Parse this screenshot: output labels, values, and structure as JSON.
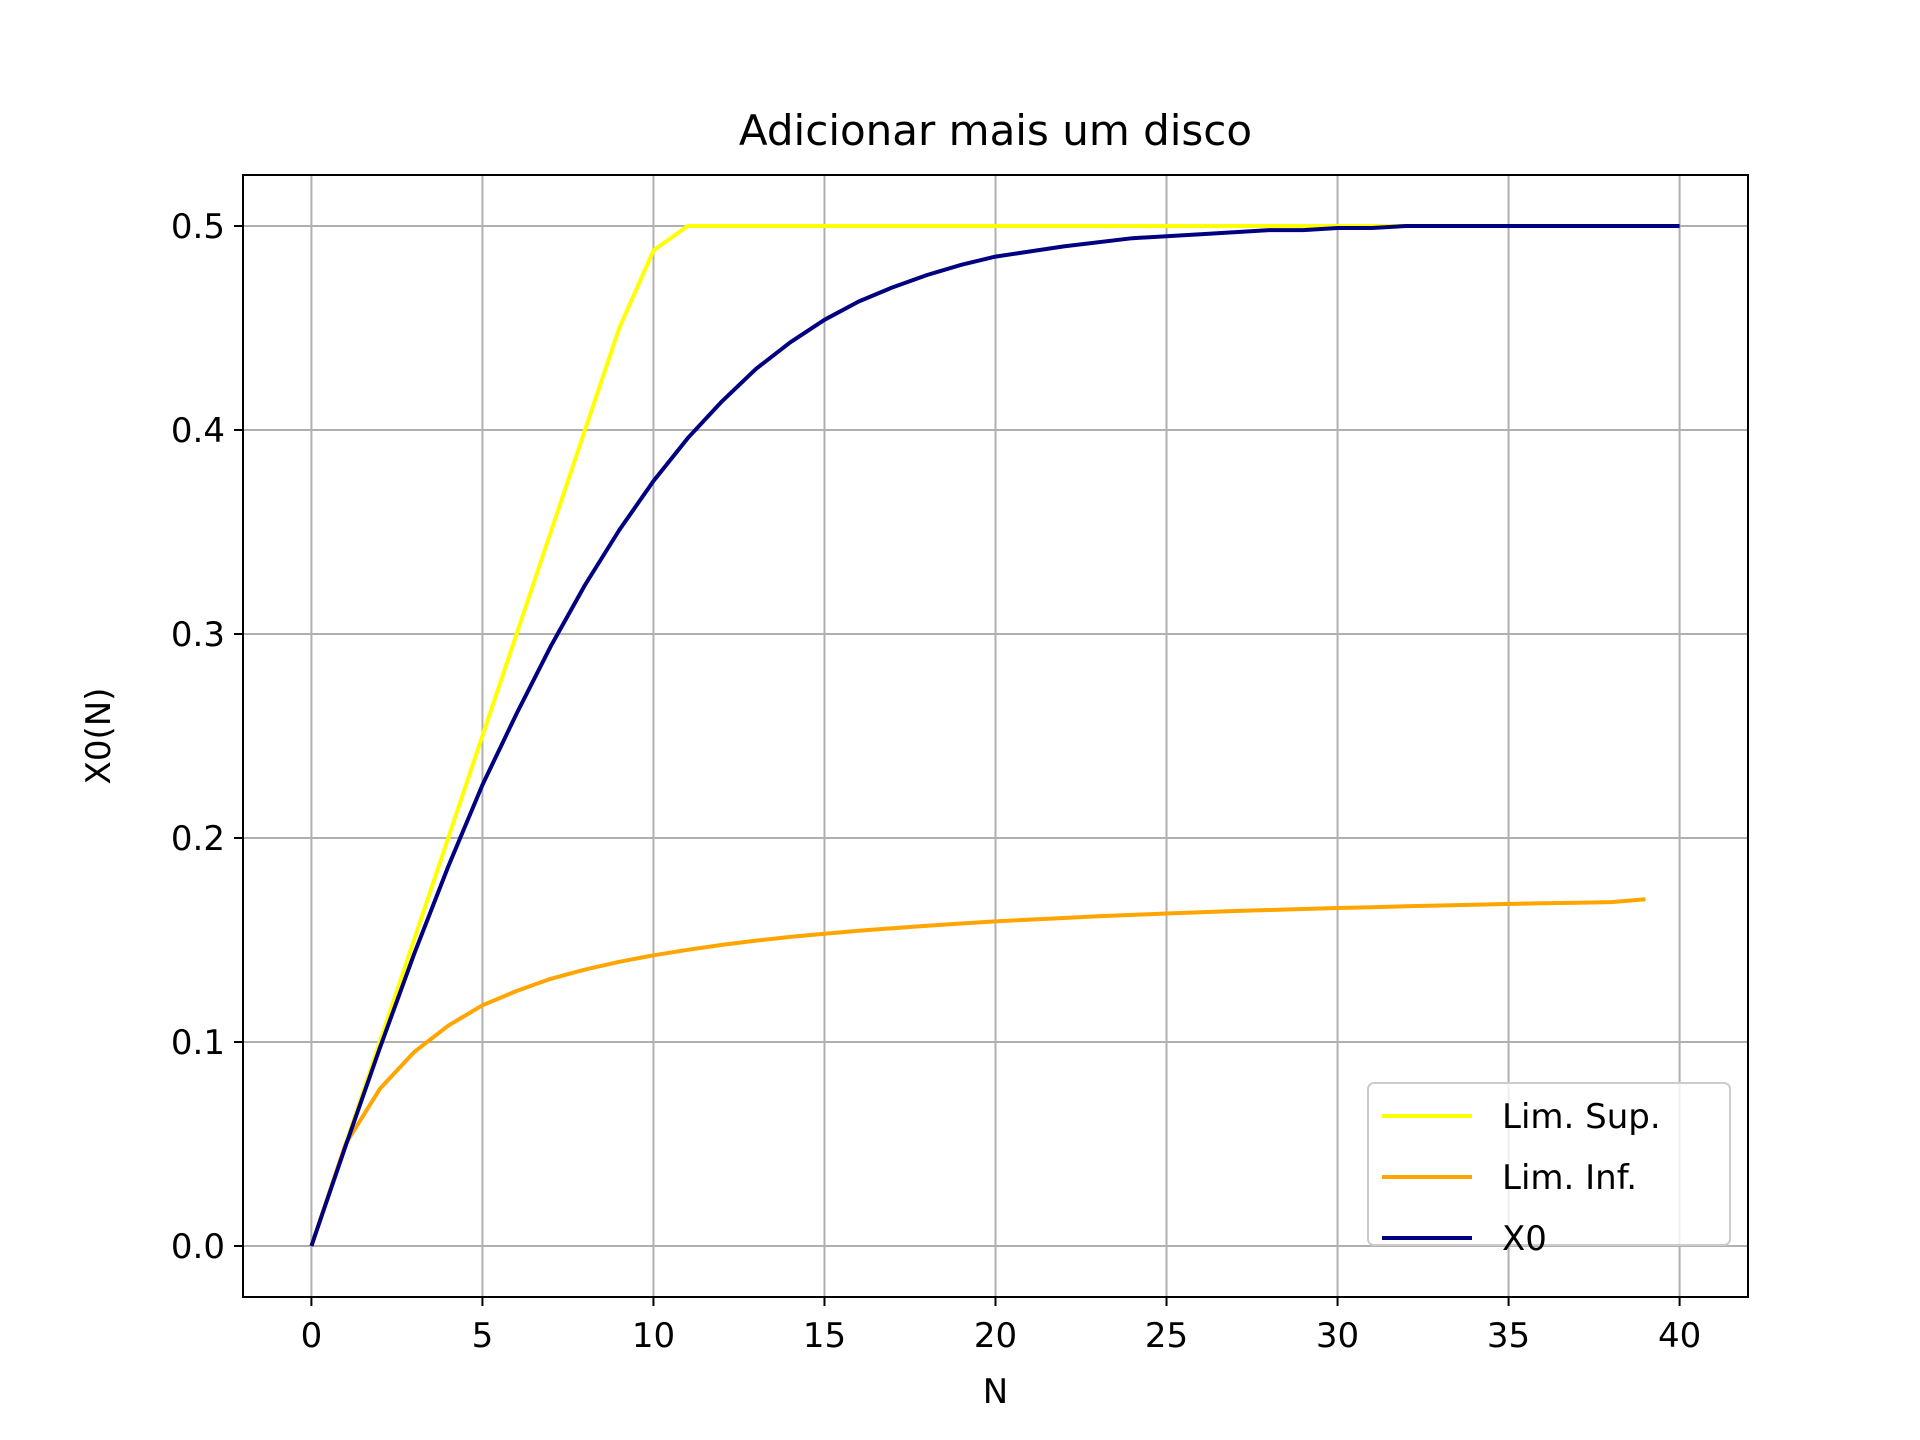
{
  "chart_data": {
    "type": "line",
    "title": "Adicionar mais um disco",
    "xlabel": "N",
    "ylabel": "X0(N)",
    "xlim": [
      -2,
      42
    ],
    "ylim": [
      -0.025,
      0.525
    ],
    "xticks": [
      0,
      5,
      10,
      15,
      20,
      25,
      30,
      35,
      40
    ],
    "xtick_labels": [
      "0",
      "5",
      "10",
      "15",
      "20",
      "25",
      "30",
      "35",
      "40"
    ],
    "yticks": [
      0.0,
      0.1,
      0.2,
      0.3,
      0.4,
      0.5
    ],
    "ytick_labels": [
      "0.0",
      "0.1",
      "0.2",
      "0.3",
      "0.4",
      "0.5"
    ],
    "grid": true,
    "legend_position": "lower-right",
    "series": [
      {
        "name": "Lim. Sup.",
        "color": "#ffff00",
        "x": [
          0,
          1,
          2,
          3,
          4,
          5,
          6,
          7,
          8,
          9,
          10,
          11,
          12,
          20,
          30,
          40
        ],
        "y": [
          0.0,
          0.05,
          0.1,
          0.15,
          0.2,
          0.25,
          0.3,
          0.35,
          0.4,
          0.45,
          0.488,
          0.5,
          0.5,
          0.5,
          0.5,
          0.5
        ]
      },
      {
        "name": "Lim. Inf.",
        "color": "#ffa500",
        "x": [
          0,
          1,
          2,
          3,
          4,
          5,
          6,
          7,
          8,
          9,
          10,
          11,
          12,
          13,
          14,
          15,
          16,
          17,
          18,
          19,
          20,
          21,
          22,
          23,
          24,
          25,
          26,
          27,
          28,
          29,
          30,
          31,
          32,
          33,
          34,
          35,
          36,
          37,
          38,
          39
        ],
        "y": [
          0.0,
          0.05,
          0.077,
          0.095,
          0.108,
          0.118,
          0.125,
          0.131,
          0.1355,
          0.1393,
          0.1425,
          0.1452,
          0.1476,
          0.1497,
          0.1515,
          0.1531,
          0.1545,
          0.1558,
          0.157,
          0.1581,
          0.1591,
          0.16,
          0.1608,
          0.1616,
          0.1623,
          0.163,
          0.1636,
          0.1642,
          0.1647,
          0.1652,
          0.1657,
          0.1661,
          0.1665,
          0.1669,
          0.1673,
          0.1677,
          0.168,
          0.1683,
          0.1686,
          0.17
        ]
      },
      {
        "name": "X0",
        "color": "#000080",
        "x": [
          0,
          1,
          2,
          3,
          4,
          5,
          6,
          7,
          8,
          9,
          10,
          11,
          12,
          13,
          14,
          15,
          16,
          17,
          18,
          19,
          20,
          22,
          24,
          26,
          28,
          29,
          30,
          31,
          32,
          35,
          40
        ],
        "y": [
          0.0,
          0.049,
          0.097,
          0.143,
          0.186,
          0.226,
          0.261,
          0.294,
          0.324,
          0.351,
          0.375,
          0.396,
          0.414,
          0.43,
          0.443,
          0.454,
          0.463,
          0.47,
          0.476,
          0.481,
          0.485,
          0.49,
          0.494,
          0.496,
          0.498,
          0.498,
          0.499,
          0.499,
          0.5,
          0.5,
          0.5
        ]
      }
    ]
  }
}
